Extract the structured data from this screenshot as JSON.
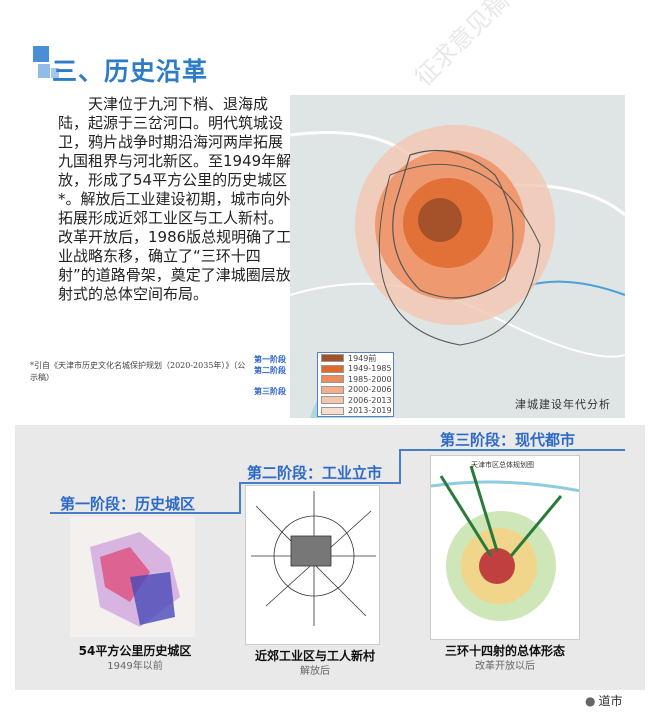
{
  "title": "三、历史沿革",
  "body_text": "天津位于九河下梢、退海成陆，起源于三岔河口。明代筑城设卫，鸦片战争时期沿海河两岸拓展九国租界与河北新区。至1949年解放，形成了54平方公里的历史城区*。解放后工业建设初期，城市向外拓展形成近郊工业区与工人新村。改革开放后，1986版总规明确了工业战略东移，确立了“三环十四射”的道路骨架，奠定了津城圈层放射式的总体空间布局。",
  "footnote": "*引自《天津市历史文化名城保护规划（2020-2035年）》（公示稿）",
  "map": {
    "caption": "津城建设年代分析",
    "stage_labels": [
      "第一阶段",
      "第二阶段",
      "第三阶段"
    ],
    "legend": [
      {
        "label": "1949前",
        "color": "#a5522a"
      },
      {
        "label": "1949-1985",
        "color": "#de6a2e"
      },
      {
        "label": "1985-2000",
        "color": "#ee8c5c"
      },
      {
        "label": "2000-2006",
        "color": "#f5ae8a"
      },
      {
        "label": "2006-2013",
        "color": "#f3c6b0"
      },
      {
        "label": "2013-2019",
        "color": "#f8ded2"
      }
    ]
  },
  "stages": [
    {
      "label": "第一阶段：历史城区",
      "caption": "54平方公里历史城区",
      "sub": "1949年以前"
    },
    {
      "label": "第二阶段：工业立市",
      "caption": "近郊工业区与工人新村",
      "sub": "解放后"
    },
    {
      "label": "第三阶段：现代都市",
      "caption": "三环十四射的总体形态",
      "sub": "改革开放以后",
      "map_title": "天津市区总体规划图"
    }
  ],
  "watermark": "征求意见稿",
  "logo": "道市",
  "accent": "#2d7cc7"
}
